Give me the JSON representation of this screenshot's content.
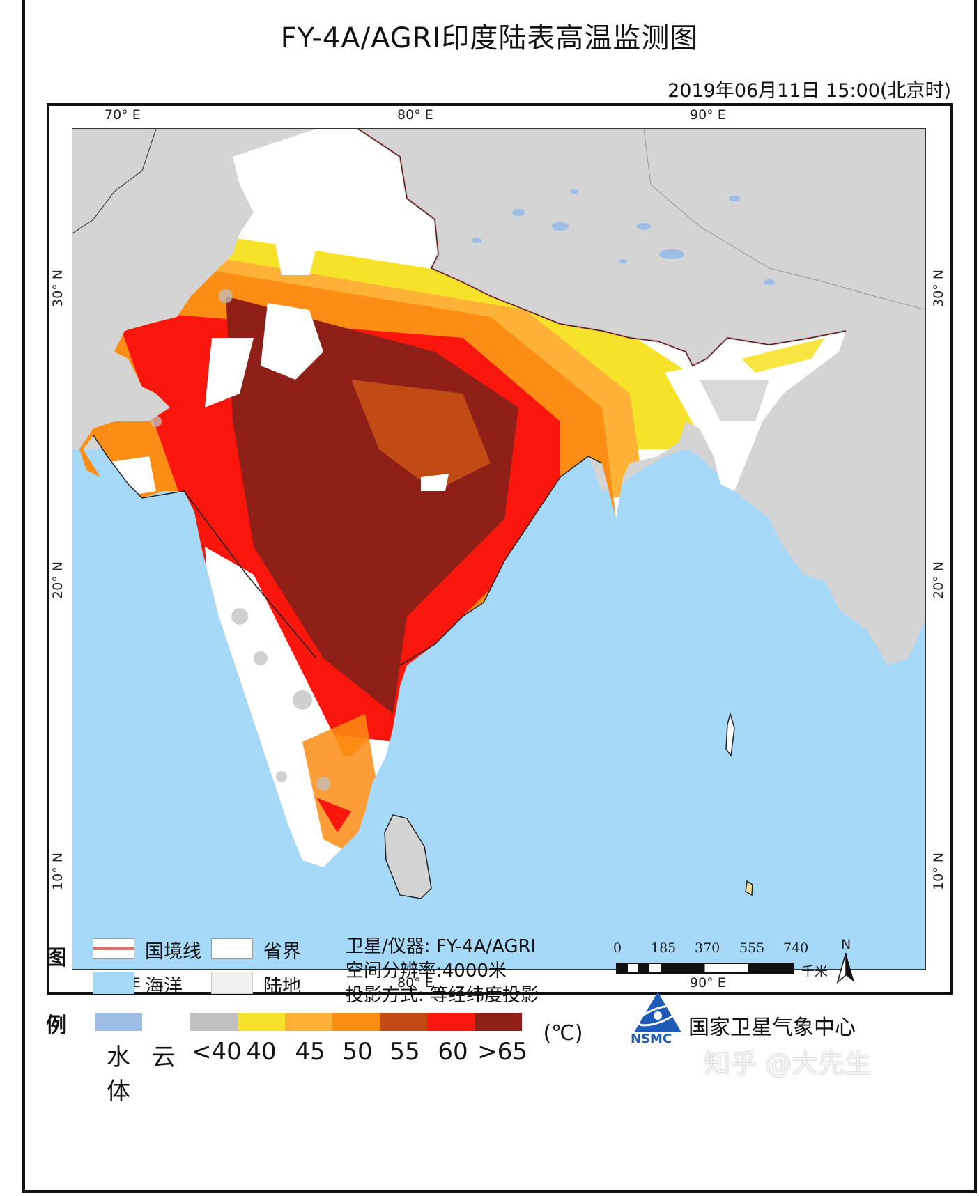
{
  "header": {
    "title": "FY-4A/AGRI印度陆表高温监测图",
    "datetime": "2019年06月11日  15:00(北京时)"
  },
  "graticule": {
    "lon_labels": [
      "70° E",
      "80° E",
      "90° E"
    ],
    "lat_labels": [
      "30° N",
      "20° N",
      "10° N"
    ]
  },
  "colors": {
    "ocean": "#a6d9f7",
    "land_other": "#d4d4d4",
    "water_body": "#9dbde6",
    "cloud": "#ffffff",
    "lt40": "#c0c0c0",
    "c40": "#f7e22a",
    "c45": "#fdb137",
    "c50": "#fb8c14",
    "c55": "#c24a14",
    "c60": "#f9170d",
    "gt65": "#8e2018",
    "border": "#e36a6a"
  },
  "legend": {
    "title_top": "图",
    "title_bottom": "例",
    "items": {
      "national_border": "国境线",
      "province_border": "省界",
      "ocean": "海洋",
      "land": "陆地"
    },
    "ramp_labels": [
      "水体",
      "云",
      "<40",
      "40",
      "45",
      "50",
      "55",
      "60",
      ">65"
    ],
    "unit": "(℃)"
  },
  "info": {
    "satellite": "卫星/仪器:  FY-4A/AGRI",
    "resolution": "空间分辨率:4000米",
    "projection": "投影方式:   等经纬度投影"
  },
  "scale_bar": {
    "ticks": [
      "0",
      "185",
      "370",
      "555",
      "740"
    ],
    "unit": "千米",
    "north": "N"
  },
  "organization": {
    "name": "国家卫星气象中心",
    "logo_text": "NSMC"
  },
  "watermark": "知乎 @大先生"
}
